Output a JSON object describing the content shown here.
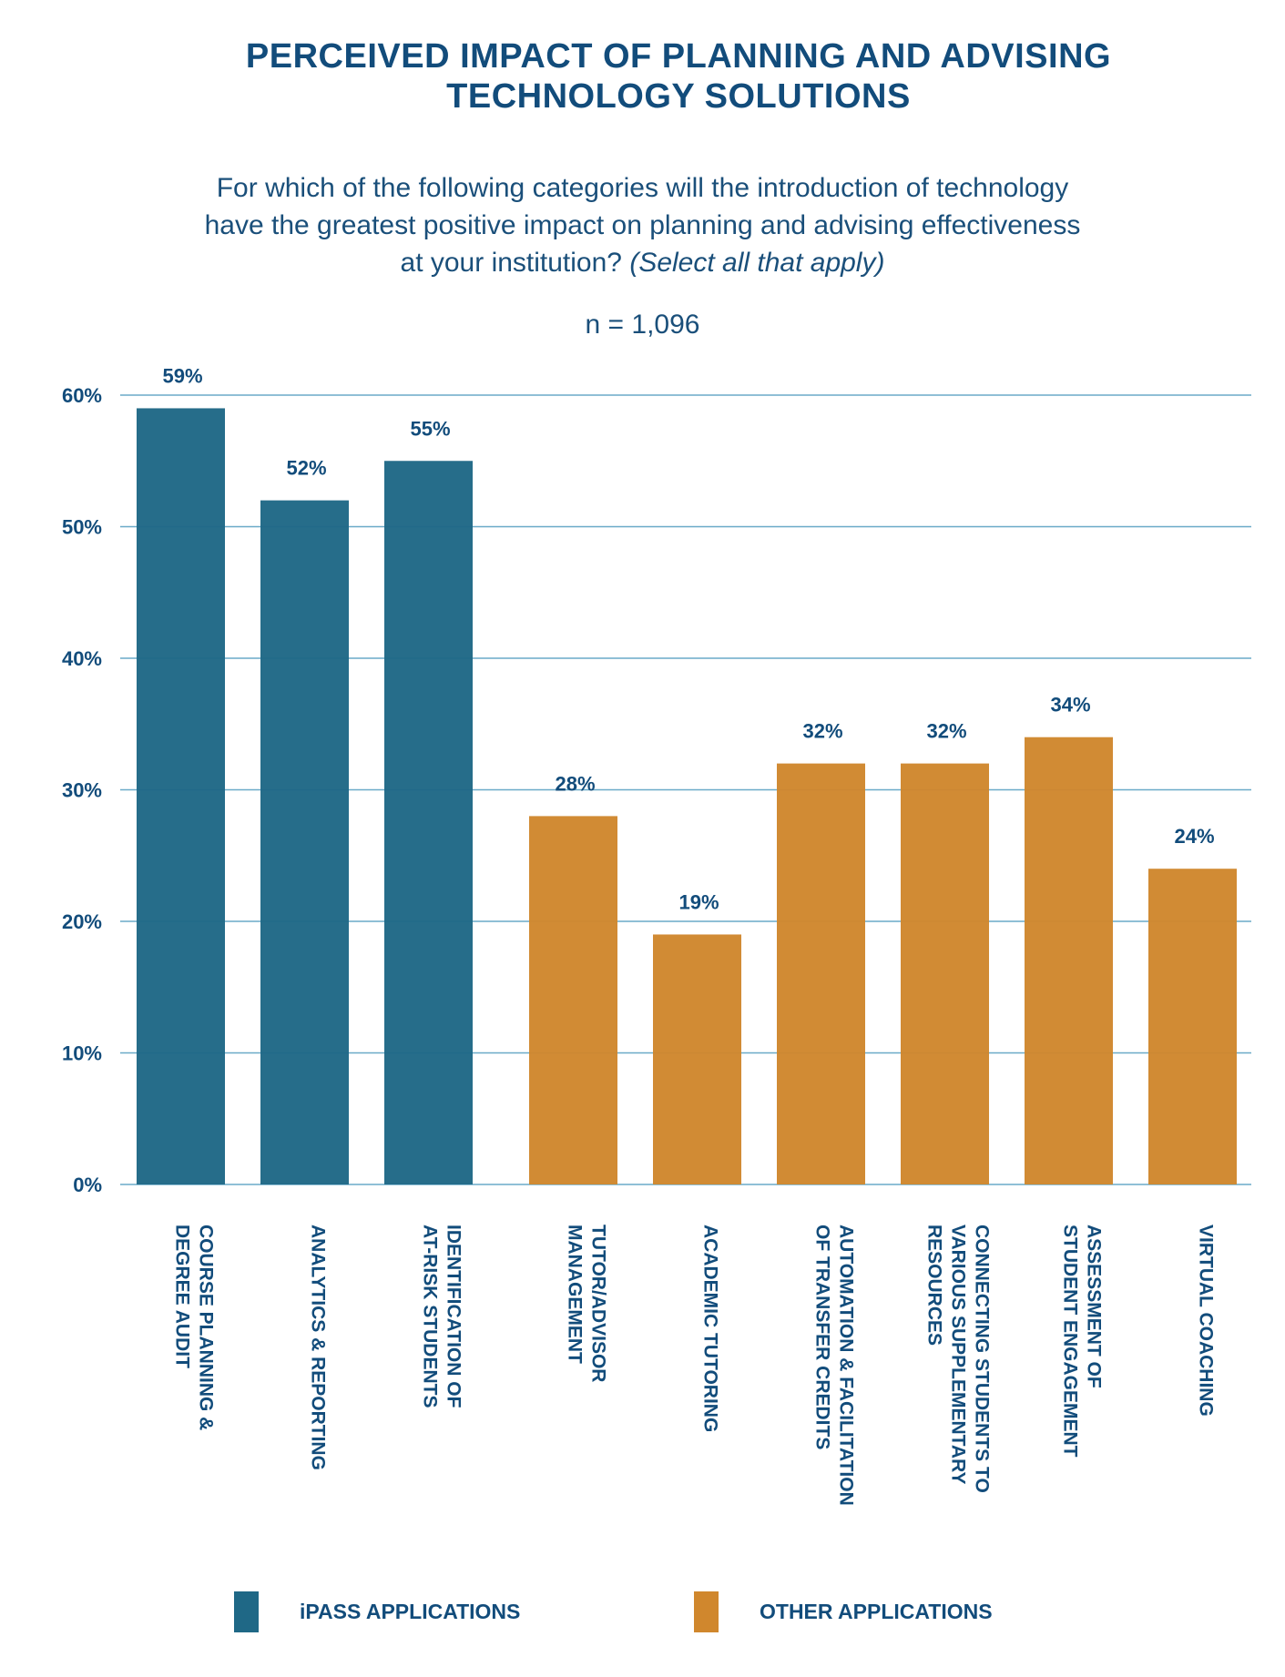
{
  "title": {
    "line1": "PERCEIVED IMPACT OF PLANNING AND ADVISING",
    "line2": "TECHNOLOGY SOLUTIONS"
  },
  "question": {
    "line1": "For which of the following categories will the introduction of technology",
    "line2": "have the greatest positive impact on planning and advising effectiveness",
    "line3_prefix": "at your institution? ",
    "line3_emphasis": "(Select all that apply)"
  },
  "sample_size": "n = 1,096",
  "colors": {
    "ipass": "#1f6886",
    "other": "#d0872d",
    "grid": "#6aaac8",
    "text": "#124c7b"
  },
  "legend": [
    {
      "label": "iPASS APPLICATIONS",
      "group": "ipass"
    },
    {
      "label": "OTHER APPLICATIONS",
      "group": "other"
    }
  ],
  "chart_data": {
    "type": "bar",
    "title": "PERCEIVED IMPACT OF PLANNING AND ADVISING TECHNOLOGY SOLUTIONS",
    "subtitle": "For which of the following categories will the introduction of technology have the greatest positive impact on planning and advising effectiveness at your institution? (Select all that apply)",
    "annotation": "n = 1,096",
    "xlabel": "",
    "ylabel": "",
    "ylim": [
      0,
      60
    ],
    "yticks": [
      0,
      10,
      20,
      30,
      40,
      50,
      60
    ],
    "ytick_labels": [
      "0%",
      "10%",
      "20%",
      "30%",
      "40%",
      "50%",
      "60%"
    ],
    "grid": true,
    "legend_position": "bottom",
    "categories": [
      [
        "COURSE PLANNING &",
        "DEGREE AUDIT"
      ],
      [
        "ANALYTICS & REPORTING"
      ],
      [
        "IDENTIFICATION OF",
        "AT-RISK STUDENTS"
      ],
      [
        "TUTOR/ADVISOR",
        "MANAGEMENT"
      ],
      [
        "ACADEMIC TUTORING"
      ],
      [
        "AUTOMATION & FACILITATION",
        "OF TRANSFER  CREDITS"
      ],
      [
        "CONNECTING STUDENTS TO",
        "VARIOUS SUPPLEMENTARY",
        "RESOURCES"
      ],
      [
        "ASSESSMENT OF",
        "STUDENT ENGAGEMENT"
      ],
      [
        "VIRTUAL COACHING"
      ]
    ],
    "values": [
      59,
      52,
      55,
      28,
      19,
      32,
      32,
      34,
      24
    ],
    "value_labels": [
      "59%",
      "52%",
      "55%",
      "28%",
      "19%",
      "32%",
      "32%",
      "34%",
      "24%"
    ],
    "groups": [
      "ipass",
      "ipass",
      "ipass",
      "other",
      "other",
      "other",
      "other",
      "other",
      "other"
    ],
    "series": [
      {
        "name": "iPASS APPLICATIONS",
        "category_indices": [
          0,
          1,
          2
        ]
      },
      {
        "name": "OTHER APPLICATIONS",
        "category_indices": [
          3,
          4,
          5,
          6,
          7,
          8
        ]
      }
    ]
  }
}
